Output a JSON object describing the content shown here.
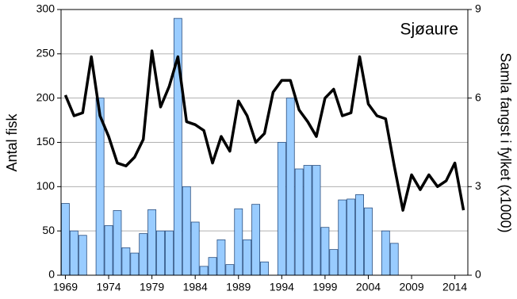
{
  "chart_data": {
    "type": "combo",
    "y_label": "Antal fisk",
    "y2_label": "Samla fangst i fylket (x1000)",
    "annotation": "Sjøaure",
    "x": [
      1969,
      1970,
      1971,
      1972,
      1973,
      1974,
      1975,
      1976,
      1977,
      1978,
      1979,
      1980,
      1981,
      1982,
      1983,
      1984,
      1985,
      1986,
      1987,
      1988,
      1989,
      1990,
      1991,
      1992,
      1993,
      1994,
      1995,
      1996,
      1997,
      1998,
      1999,
      2000,
      2001,
      2002,
      2003,
      2004,
      2005,
      2006,
      2007,
      2008,
      2009,
      2010,
      2011,
      2012,
      2013,
      2014,
      2015
    ],
    "series": [
      {
        "type": "bar",
        "color": "#99ccff",
        "values": [
          81,
          50,
          45,
          null,
          200,
          56,
          73,
          31,
          25,
          47,
          74,
          50,
          50,
          290,
          100,
          60,
          10,
          20,
          40,
          12,
          75,
          40,
          80,
          15,
          null,
          150,
          200,
          120,
          124,
          124,
          54,
          29,
          85,
          86,
          91,
          76,
          null,
          50,
          36,
          null,
          null,
          null,
          null,
          null,
          null,
          null,
          null
        ]
      },
      {
        "type": "line",
        "axis": "y2",
        "color": "#000000",
        "values": [
          6.1,
          5.4,
          5.5,
          7.4,
          5.4,
          4.7,
          3.8,
          3.7,
          4.0,
          4.6,
          7.6,
          5.7,
          6.4,
          7.4,
          5.2,
          5.1,
          4.9,
          3.8,
          4.7,
          4.2,
          5.9,
          5.4,
          4.5,
          4.8,
          6.2,
          6.6,
          6.6,
          5.6,
          5.2,
          4.7,
          6.0,
          6.3,
          5.4,
          5.5,
          7.4,
          5.8,
          5.4,
          5.3,
          3.7,
          2.2,
          3.4,
          2.9,
          3.4,
          3.0,
          3.2,
          3.8,
          2.2
        ]
      }
    ],
    "xlim": [
      1968.5,
      2015.5
    ],
    "xticks": [
      1969,
      1974,
      1979,
      1984,
      1989,
      1994,
      1999,
      2004,
      2009,
      2014
    ],
    "ylim": [
      0,
      300
    ],
    "yticks": [
      0,
      50,
      100,
      150,
      200,
      250,
      300
    ],
    "y2lim": [
      0,
      9
    ],
    "y2ticks": [
      0,
      3,
      6,
      9
    ],
    "grid": true
  }
}
